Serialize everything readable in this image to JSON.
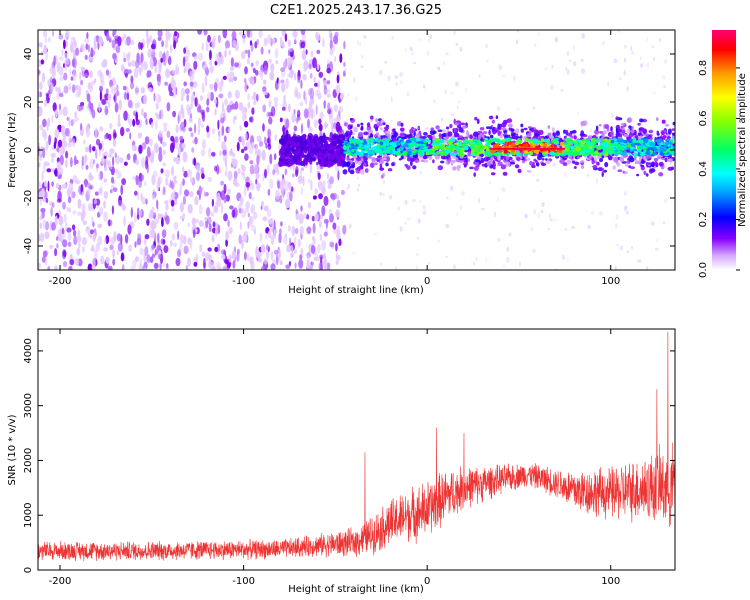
{
  "title": "C2E1.2025.243.17.36.G25",
  "chart_data": [
    {
      "type": "heatmap",
      "xlabel": "Height of straight line (km)",
      "ylabel": "Frequency (Hz)",
      "xlim": [
        -212,
        135
      ],
      "ylim": [
        -50,
        50
      ],
      "xticks": [
        -200,
        -100,
        0,
        100
      ],
      "yticks": [
        -40,
        -20,
        0,
        20,
        40
      ],
      "colorbar": {
        "label": "Normalized spectral amplitude",
        "range": [
          0,
          0.95
        ],
        "ticks": [
          "0.0",
          "0.2",
          "0.4",
          "0.6",
          "0.8"
        ]
      },
      "features": [
        {
          "name": "broadband noise",
          "x_range": [
            -212,
            -45
          ],
          "freq_range": [
            -50,
            50
          ],
          "amplitude": 0.05
        },
        {
          "name": "band",
          "x_range": [
            -80,
            -45
          ],
          "freq_range": [
            -6,
            6
          ],
          "amplitude": 0.12
        },
        {
          "name": "signal band",
          "x_range": [
            -45,
            135
          ],
          "freq_range": [
            -8,
            10
          ],
          "amplitude": 0.5
        },
        {
          "name": "signal peak",
          "x_range": [
            35,
            75
          ],
          "freq_center": 0,
          "amplitude": 0.95
        }
      ]
    },
    {
      "type": "line",
      "xlabel": "Height of straight line (km)",
      "ylabel": "SNR (10 * v/v)",
      "xlim": [
        -212,
        135
      ],
      "ylim": [
        0,
        4400
      ],
      "xticks": [
        -200,
        -100,
        0,
        100
      ],
      "yticks": [
        0,
        1000,
        2000,
        3000,
        4000
      ],
      "color": "#ee3333",
      "envelope": {
        "x": [
          -212,
          -150,
          -80,
          -60,
          -40,
          -30,
          -20,
          -10,
          0,
          10,
          20,
          40,
          55,
          70,
          80,
          100,
          120,
          135
        ],
        "mean": [
          350,
          350,
          380,
          450,
          500,
          650,
          850,
          1000,
          1100,
          1350,
          1500,
          1650,
          1750,
          1600,
          1450,
          1400,
          1500,
          1550
        ],
        "spread": [
          200,
          200,
          200,
          230,
          300,
          400,
          500,
          550,
          600,
          550,
          450,
          300,
          250,
          300,
          450,
          550,
          700,
          900
        ]
      },
      "spikes": [
        {
          "x": -34,
          "y": 2150
        },
        {
          "x": 5,
          "y": 2600
        },
        {
          "x": 20,
          "y": 2500
        },
        {
          "x": 125,
          "y": 3300
        },
        {
          "x": 131,
          "y": 4350
        }
      ]
    }
  ]
}
